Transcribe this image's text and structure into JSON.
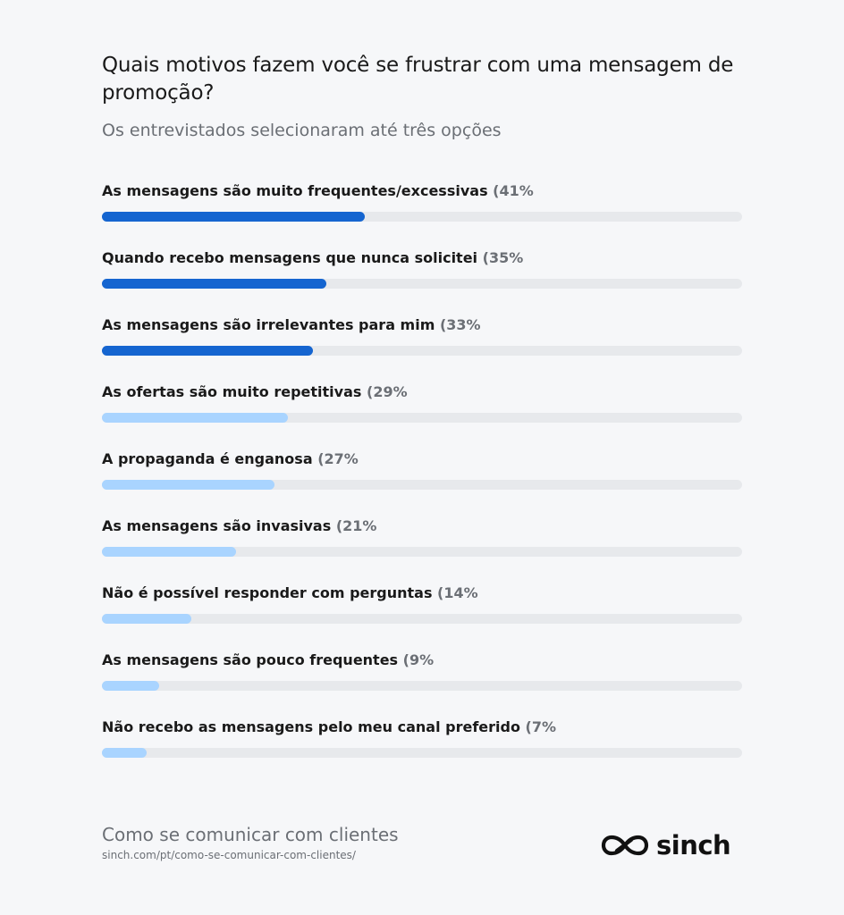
{
  "header": {
    "title": "Quais motivos fazem você se frustrar com uma mensagem de promoção?",
    "subtitle": "Os entrevistados selecionaram até três opções"
  },
  "chart_data": {
    "type": "bar",
    "orientation": "horizontal",
    "title": "Quais motivos fazem você se frustrar com uma mensagem de promoção?",
    "subtitle": "Os entrevistados selecionaram até três opções",
    "xlim": [
      0,
      100
    ],
    "grid": false,
    "colors": {
      "highlight": "#1565d0",
      "normal": "#a9d4ff",
      "track": "#e7e9ec"
    },
    "categories": [
      "As mensagens são muito frequentes/excessivas",
      "Quando recebo mensagens que nunca solicitei",
      "As mensagens são irrelevantes para mim",
      "As ofertas são muito repetitivas",
      "A propaganda é enganosa",
      "As mensagens são invasivas",
      "Não é possível responder com perguntas",
      "As mensagens são pouco frequentes",
      "Não recebo as mensagens pelo meu canal preferido"
    ],
    "values": [
      41,
      35,
      33,
      29,
      27,
      21,
      14,
      9,
      7
    ],
    "value_labels": [
      "(41%",
      "(35%",
      "(33%",
      "(29%",
      "(27%",
      "(21%",
      "(14%",
      "(9%",
      "(7%"
    ],
    "highlighted": [
      true,
      true,
      true,
      false,
      false,
      false,
      false,
      false,
      false
    ]
  },
  "footer": {
    "title": "Como se comunicar com clientes",
    "url": "sinch.com/pt/como-se-comunicar-com-clientes/",
    "logo_text": "sinch",
    "logo_icon": "sinch-logo-icon"
  }
}
